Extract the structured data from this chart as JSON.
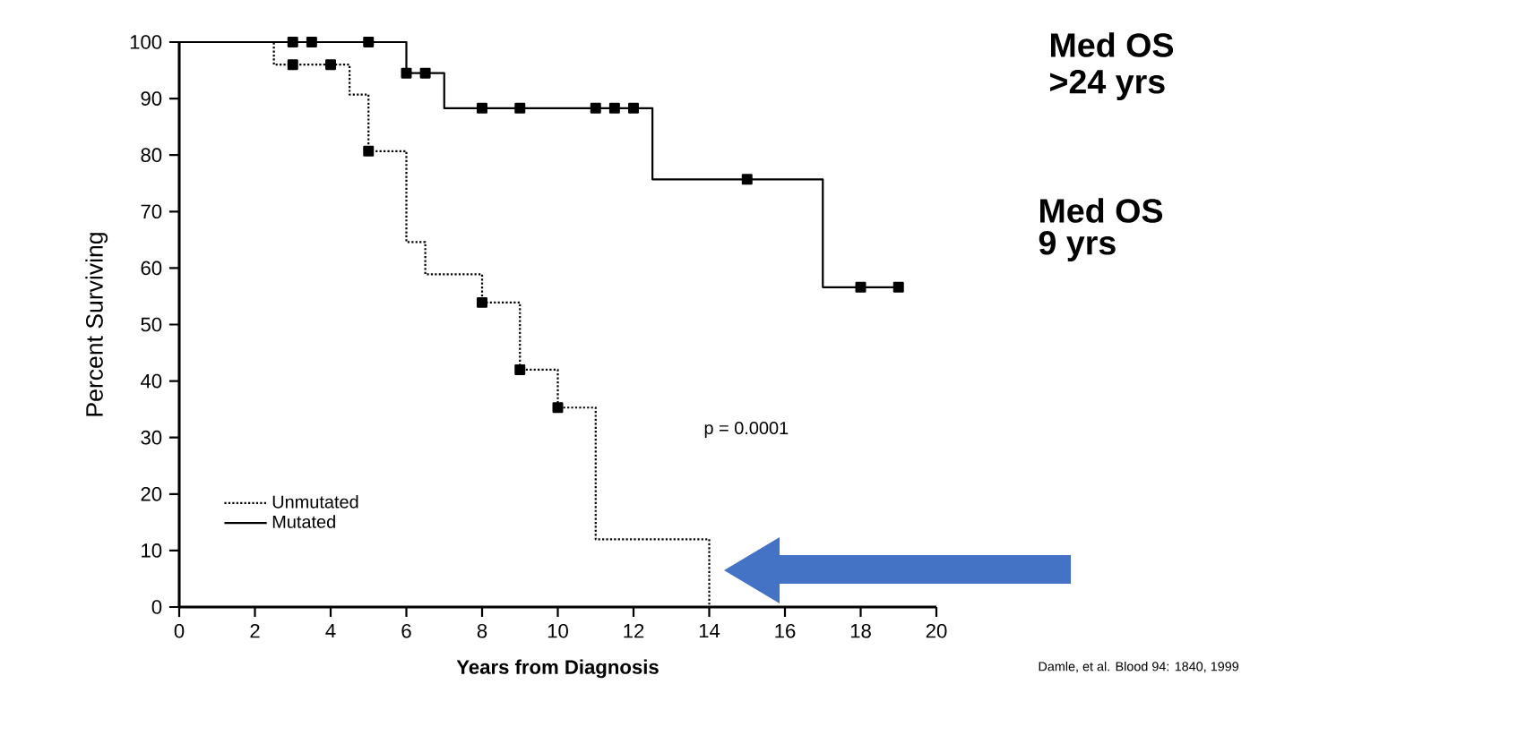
{
  "chart_data": {
    "type": "step",
    "xlabel": "Years from Diagnosis",
    "ylabel": "Percent Surviving",
    "xlim": [
      0,
      20
    ],
    "xticks": [
      0,
      2,
      4,
      6,
      8,
      10,
      12,
      14,
      16,
      18,
      20
    ],
    "ylim": [
      0,
      100
    ],
    "yticks": [
      0,
      10,
      20,
      30,
      40,
      50,
      60,
      70,
      80,
      90,
      100
    ],
    "legend": "bottom left",
    "series": [
      {
        "name": "Unmutated",
        "color": "#000000",
        "line_style": "dotted",
        "x": [
          0,
          2.5,
          4.5,
          5,
          6,
          6.5,
          8,
          9,
          10,
          11,
          14
        ],
        "values": [
          100,
          96,
          90.7,
          80.7,
          64.6,
          58.9,
          53.9,
          42,
          35.3,
          12,
          0
        ]
      },
      {
        "name": "Mutated",
        "color": "#000000",
        "line_style": "solid",
        "x": [
          0,
          6,
          7,
          12.5,
          17,
          19
        ],
        "values": [
          100,
          94.5,
          88.3,
          75.7,
          56.6,
          56.6
        ]
      },
      {
        "type": "scatter",
        "marker": "square",
        "color": "#000000",
        "x": [
          3,
          4,
          5,
          8,
          9,
          10
        ],
        "values": [
          96,
          96,
          80.7,
          53.9,
          42,
          35.3
        ]
      },
      {
        "type": "scatter",
        "marker": "square",
        "color": "#000000",
        "x": [
          3,
          3.5,
          5,
          6,
          6.5,
          8,
          9,
          11,
          11.5,
          12,
          15,
          18,
          19
        ],
        "values": [
          100,
          100,
          100,
          94.5,
          94.5,
          88.3,
          88.3,
          88.3,
          88.3,
          88.3,
          75.7,
          56.6,
          56.6
        ]
      }
    ],
    "annotations": [
      "Med OS",
      ">24 yrs",
      "Med OS",
      "9 yrs",
      "p = 0.0001",
      "Damle, et al. Blood 94: 1840, 1999"
    ]
  }
}
